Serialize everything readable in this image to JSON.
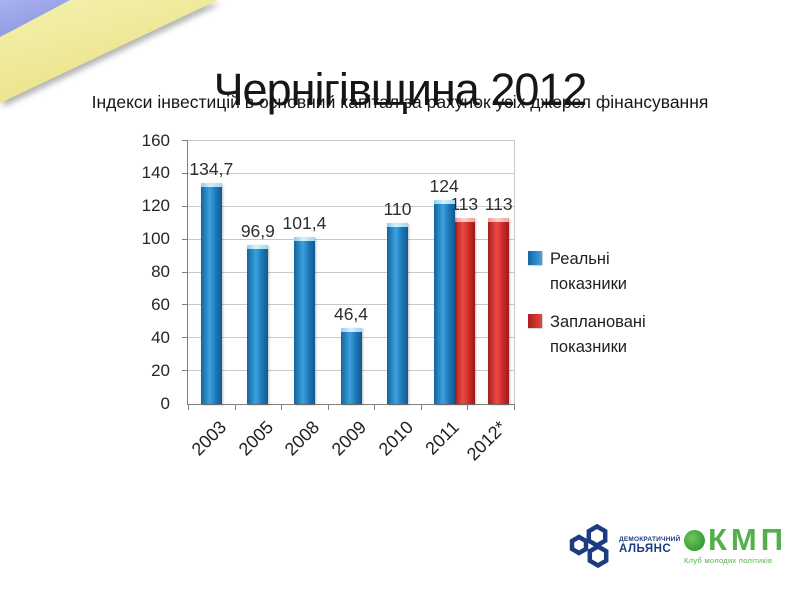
{
  "slide": {
    "title": "Чернігівщина 2012",
    "subtitle": "Індекси інвестицій в основний капітал за рахунок усіх джерел фінансування"
  },
  "chart_data": {
    "type": "bar",
    "title": "Чернігівщина 2012",
    "subtitle": "Індекси інвестицій в основний капітал за рахунок усіх джерел фінансування",
    "categories": [
      "2003",
      "2005",
      "2008",
      "2009",
      "2010",
      "2011",
      "2012*"
    ],
    "series": [
      {
        "name": "Реальні показники",
        "color": "#1b79b6",
        "values": [
          134.7,
          96.9,
          101.4,
          46.4,
          110,
          124,
          null
        ]
      },
      {
        "name": "Заплановані показники",
        "color": "#d0302c",
        "values": [
          null,
          null,
          null,
          null,
          null,
          113,
          113
        ]
      }
    ],
    "data_labels": [
      [
        "134,7",
        "96,9",
        "101,4",
        "46,4",
        "110",
        "124",
        ""
      ],
      [
        "",
        "",
        "",
        "",
        "",
        "113",
        "113"
      ]
    ],
    "xlabel": "",
    "ylabel": "",
    "ylim": [
      0,
      160
    ],
    "ytick_step": 20,
    "yticks": [
      0,
      20,
      40,
      60,
      80,
      100,
      120,
      140,
      160
    ],
    "grid": true,
    "legend_position": "right"
  },
  "legend": {
    "items": [
      {
        "label": "Реальні показники",
        "color": "#1b79b6"
      },
      {
        "label": "Заплановані показники",
        "color": "#d0302c"
      }
    ]
  },
  "decoration": {
    "flag_blue": "#94a0e6",
    "flag_yellow": "#f0eb9e"
  },
  "footer": {
    "demalliance": {
      "name_line1": "ДЕМОКРАТИЧНИЙ",
      "name_line2": "АЛЬЯНС",
      "color": "#1b3c80"
    },
    "kmp": {
      "abbr": "КМП",
      "tagline": "Клуб молодих політиків",
      "color": "#55b04a"
    }
  }
}
